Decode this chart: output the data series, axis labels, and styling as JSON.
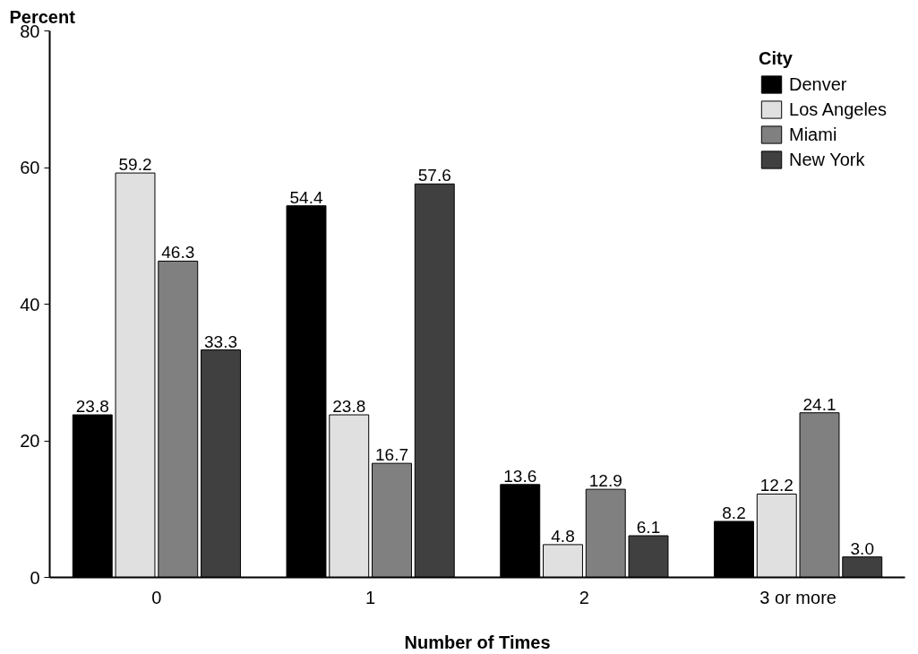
{
  "chart_data": {
    "type": "bar",
    "categories": [
      "0",
      "1",
      "2",
      "3 or more"
    ],
    "xlabel": "Number of Times",
    "ylabel": "Percent",
    "legend_title": "City",
    "series": [
      {
        "name": "Denver",
        "color": "#000000",
        "values": [
          23.8,
          54.4,
          13.6,
          8.2
        ],
        "value_labels": [
          "23.8",
          "54.4",
          "13.6",
          "8.2"
        ]
      },
      {
        "name": "Los Angeles",
        "color": "#e0e0e0",
        "values": [
          59.2,
          23.8,
          4.8,
          12.2
        ],
        "value_labels": [
          "59.2",
          "23.8",
          "4.8",
          "12.2"
        ]
      },
      {
        "name": "Miami",
        "color": "#808080",
        "values": [
          46.3,
          16.7,
          12.9,
          24.1
        ],
        "value_labels": [
          "46.3",
          "16.7",
          "12.9",
          "24.1"
        ]
      },
      {
        "name": "New York",
        "color": "#404040",
        "values": [
          33.3,
          57.6,
          6.1,
          3.0
        ],
        "value_labels": [
          "33.3",
          "57.6",
          "6.1",
          "3.0"
        ]
      }
    ],
    "ylim": [
      0,
      80
    ],
    "yticks": [
      0,
      20,
      40,
      60,
      80
    ],
    "grid": false,
    "legend": "top right"
  }
}
